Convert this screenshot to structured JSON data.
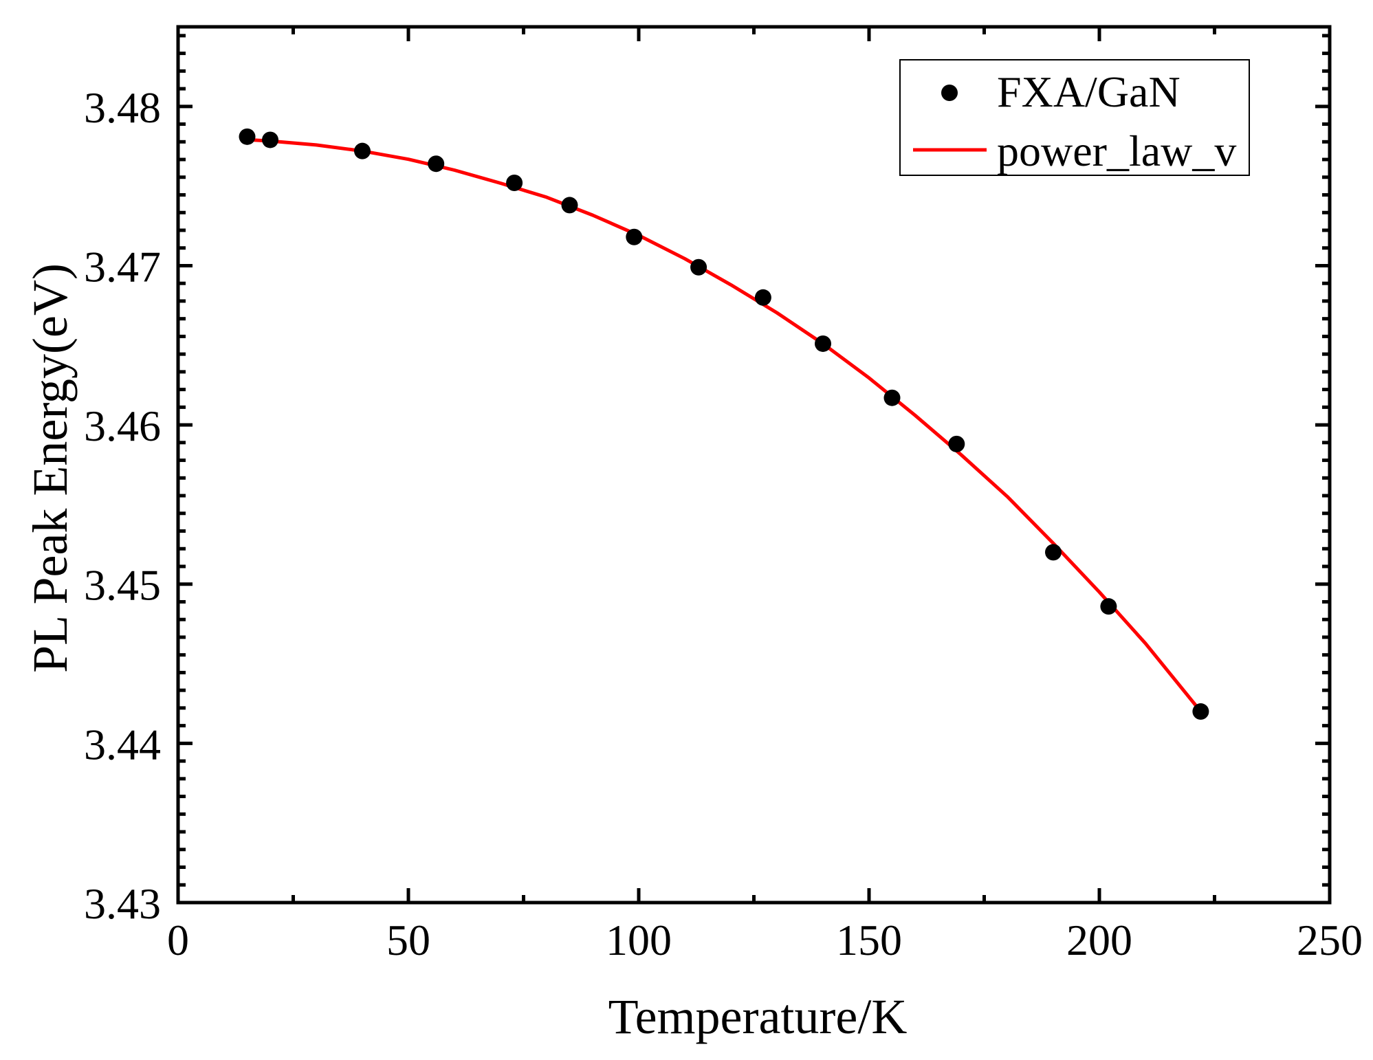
{
  "chart_data": {
    "type": "scatter",
    "title": "",
    "xlabel": "Temperature/K",
    "ylabel": "PL Peak Energy(eV)",
    "xlim": [
      0,
      250
    ],
    "ylim": [
      3.43,
      3.485
    ],
    "x_ticks": [
      0,
      50,
      100,
      150,
      200,
      250
    ],
    "x_tick_labels": [
      "0",
      "50",
      "100",
      "150",
      "200",
      "250"
    ],
    "x_minor_step": 25,
    "y_ticks": [
      3.43,
      3.44,
      3.45,
      3.46,
      3.47,
      3.48
    ],
    "y_tick_labels": [
      "3.43",
      "3.44",
      "3.45",
      "3.46",
      "3.47",
      "3.48"
    ],
    "y_minor_per_major": 8,
    "grid": false,
    "legend_position": "upper right",
    "series": [
      {
        "name": "FXA/GaN",
        "kind": "scatter",
        "marker": "circle",
        "color": "#000000",
        "x": [
          15,
          20,
          40,
          56,
          73,
          85,
          99,
          113,
          127,
          140,
          155,
          169,
          190,
          202,
          222
        ],
        "y": [
          3.4781,
          3.4779,
          3.4772,
          3.4764,
          3.4752,
          3.4738,
          3.4718,
          3.4699,
          3.468,
          3.4651,
          3.4617,
          3.4588,
          3.452,
          3.4486,
          3.442
        ]
      },
      {
        "name": "power_law_v",
        "kind": "line",
        "color": "#ff0000",
        "x": [
          15,
          20,
          30,
          40,
          50,
          60,
          70,
          80,
          90,
          100,
          110,
          120,
          130,
          140,
          150,
          160,
          170,
          180,
          190,
          200,
          210,
          222
        ],
        "y": [
          3.47791,
          3.47783,
          3.47758,
          3.4772,
          3.47668,
          3.476,
          3.47518,
          3.4743,
          3.47317,
          3.4719,
          3.47044,
          3.4688,
          3.46704,
          3.4651,
          3.46295,
          3.4606,
          3.45812,
          3.4555,
          3.45256,
          3.4495,
          3.44628,
          3.442
        ]
      }
    ]
  },
  "legend": {
    "items": [
      {
        "label": "FXA/GaN",
        "symbol": "filled-circle",
        "color": "#000000"
      },
      {
        "label": "power_law_v",
        "symbol": "line",
        "color": "#ff0000"
      }
    ]
  },
  "axes": {
    "x_title": "Temperature/K",
    "y_title": "PL Peak Energy(eV)"
  }
}
